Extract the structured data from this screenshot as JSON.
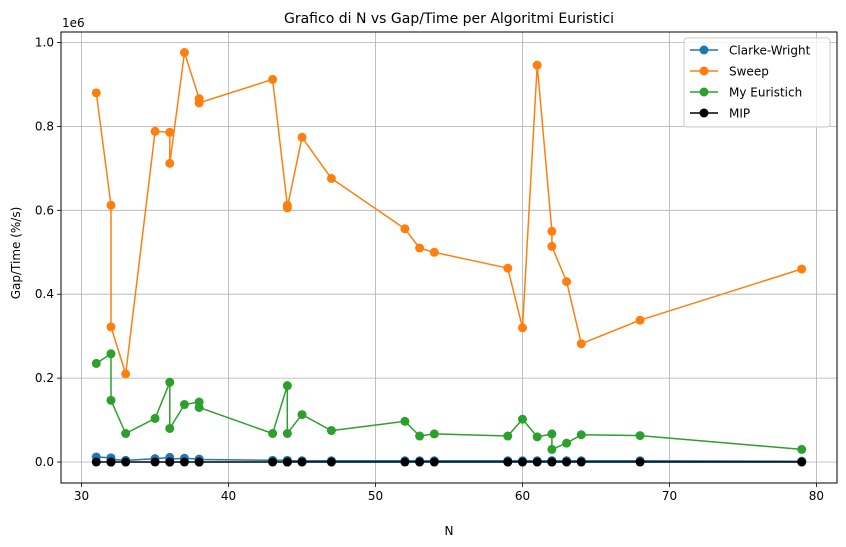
{
  "chart_data": {
    "type": "line",
    "title": "Grafico di N vs Gap/Time per Algoritmi Euristici",
    "xlabel": "N",
    "ylabel": "Gap/Time (%/s)",
    "y_scale_label": "1e6",
    "xlim": [
      28.6,
      81.4
    ],
    "ylim": [
      -50000,
      1025000
    ],
    "x_ticks": [
      30,
      40,
      50,
      60,
      70,
      80
    ],
    "x_tick_labels": [
      "30",
      "40",
      "50",
      "60",
      "70",
      "80"
    ],
    "y_ticks": [
      0,
      200000,
      400000,
      600000,
      800000,
      1000000
    ],
    "y_tick_labels": [
      "0.0",
      "0.2",
      "0.4",
      "0.6",
      "0.8",
      "1.0"
    ],
    "grid": true,
    "legend_position": "top-right",
    "series": [
      {
        "name": "Clarke-Wright",
        "color": "#1f77b4",
        "x": [
          31,
          32,
          32,
          33,
          35,
          36,
          36,
          37,
          38,
          38,
          43,
          44,
          44,
          45,
          47,
          52,
          53,
          54,
          59,
          60,
          61,
          62,
          62,
          63,
          64,
          68,
          79
        ],
        "y": [
          12000,
          10000,
          6000,
          4000,
          8000,
          11000,
          7000,
          9000,
          7000,
          6000,
          4000,
          4000,
          3000,
          3000,
          3000,
          3000,
          3000,
          3000,
          3000,
          3000,
          3000,
          3000,
          3000,
          3000,
          3000,
          3000,
          2000
        ]
      },
      {
        "name": "Sweep",
        "color": "#ff7f0e",
        "x": [
          31,
          32,
          32,
          33,
          35,
          36,
          36,
          37,
          38,
          38,
          43,
          44,
          44,
          45,
          47,
          52,
          53,
          54,
          59,
          60,
          61,
          62,
          62,
          63,
          64,
          68,
          79
        ],
        "y": [
          880000,
          612000,
          322000,
          210000,
          788000,
          786000,
          712000,
          976000,
          866000,
          856000,
          912000,
          612000,
          606000,
          774000,
          676000,
          556000,
          510000,
          500000,
          462000,
          320000,
          946000,
          550000,
          514000,
          430000,
          282000,
          338000,
          460000
        ]
      },
      {
        "name": "My Euristich",
        "color": "#2ca02c",
        "x": [
          31,
          32,
          32,
          33,
          35,
          36,
          36,
          37,
          38,
          38,
          43,
          44,
          44,
          45,
          47,
          52,
          53,
          54,
          59,
          60,
          61,
          62,
          62,
          63,
          64,
          68,
          79
        ],
        "y": [
          235000,
          258000,
          147000,
          68000,
          104000,
          190000,
          80000,
          137000,
          143000,
          130000,
          68000,
          182000,
          68000,
          113000,
          75000,
          97000,
          62000,
          67000,
          62000,
          102000,
          60000,
          67000,
          30000,
          45000,
          65000,
          63000,
          30000
        ]
      },
      {
        "name": "MIP",
        "color": "#000000",
        "x": [
          31,
          32,
          32,
          33,
          35,
          36,
          36,
          37,
          38,
          38,
          43,
          44,
          44,
          45,
          47,
          52,
          53,
          54,
          59,
          60,
          61,
          62,
          62,
          63,
          64,
          68,
          79
        ],
        "y": [
          0,
          0,
          0,
          0,
          0,
          0,
          0,
          0,
          0,
          0,
          0,
          0,
          0,
          0,
          0,
          0,
          0,
          0,
          0,
          0,
          0,
          0,
          0,
          0,
          0,
          0,
          0
        ]
      }
    ]
  }
}
